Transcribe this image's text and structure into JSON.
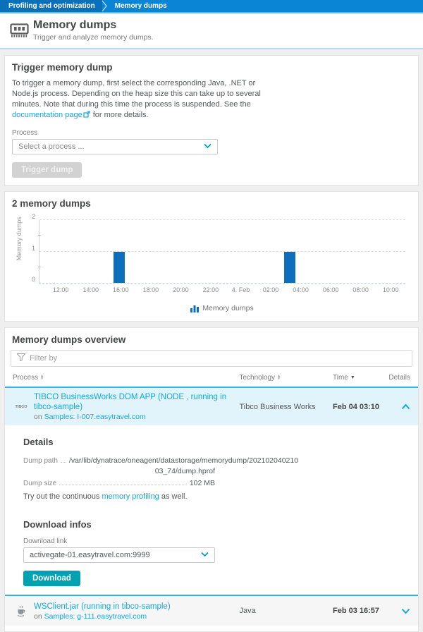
{
  "colors": {
    "bar_blue": "#0c6ebd",
    "link_blue": "#14a8e0",
    "teal": "#00a1b2",
    "crumb_bg": "#0a85d6",
    "row_highlight": "#e1f3fb",
    "row_border": "#35b1ec"
  },
  "breadcrumb": {
    "items": [
      "Profiling and optimization",
      "Memory dumps"
    ]
  },
  "header": {
    "title": "Memory dumps",
    "subtitle": "Trigger and analyze memory dumps."
  },
  "trigger_card": {
    "title": "Trigger memory dump",
    "description_before": "To trigger a memory dump, first select the corresponding Java, .NET or Node.js process. Depending on the heap size this can take up to several minutes. Note that during this time the process is suspended. See the ",
    "doc_link": "documentation page",
    "description_after": " for more details.",
    "process_label": "Process",
    "process_placeholder": "Select a process ...",
    "trigger_button": "Trigger dump"
  },
  "chart_card": {
    "title": "2 memory dumps"
  },
  "chart_data": {
    "type": "bar",
    "title": "2 memory dumps",
    "ylabel": "Memory dumps",
    "ylim": [
      0,
      2
    ],
    "yticks": [
      0,
      1,
      2
    ],
    "y_minor": [
      0.5,
      1.5
    ],
    "x_ticks": [
      "12:00",
      "14:00",
      "16:00",
      "18:00",
      "20:00",
      "22:00",
      "4. Feb",
      "02:00",
      "04:00",
      "06:00",
      "08:00",
      "10:00"
    ],
    "x_tick_start_pct": 6,
    "x_tick_end_pct": 96,
    "grid": true,
    "legend": [
      "Memory dumps"
    ],
    "legend_position": "bottom-center",
    "bar_color": "#0c6ebd",
    "bars": [
      {
        "time": "Feb 03 16:00",
        "value": 1,
        "pos": 0.218
      },
      {
        "time": "Feb 04 03:00",
        "value": 1,
        "pos": 0.684
      }
    ]
  },
  "overview_card": {
    "title": "Memory dumps overview",
    "filter_placeholder": "Filter by",
    "columns": {
      "process": "Process",
      "technology": "Technology",
      "time": "Time",
      "details": "Details"
    },
    "rows": [
      {
        "icon": "tibco-logo",
        "icon_text": "TIBCO",
        "name": "TIBCO BusinessWorks DOM APP (NODE , running in tibco-sample)",
        "host_prefix": "on ",
        "host_link": "Samples: I-007.easytravel.com",
        "technology": "Tibco Business Works",
        "time": "Feb 04 03:10",
        "expanded": true
      },
      {
        "icon": "java-logo",
        "name": "WSClient.jar (running in tibco-sample)",
        "host_prefix": "on ",
        "host_link": "Samples: g-111.easytravel.com",
        "technology": "Java",
        "time": "Feb 03 16:57",
        "expanded": false
      }
    ],
    "details_panel": {
      "title": "Details",
      "dump_path_label": "Dump path",
      "dump_path_line1": "/var/lib/dynatrace/oneagent/datastorage/memorydump/202102040210",
      "dump_path_line2": "03_74/dump.hprof",
      "dump_size_label": "Dump size",
      "dump_size_value": "102 MB",
      "tip_before": "Try out the continuous ",
      "tip_link": "memory profiling",
      "tip_after": " as well.",
      "download_title": "Download infos",
      "download_link_label": "Download link",
      "download_link_value": "activegate-01.easytravel.com:9999",
      "download_button": "Download"
    }
  }
}
